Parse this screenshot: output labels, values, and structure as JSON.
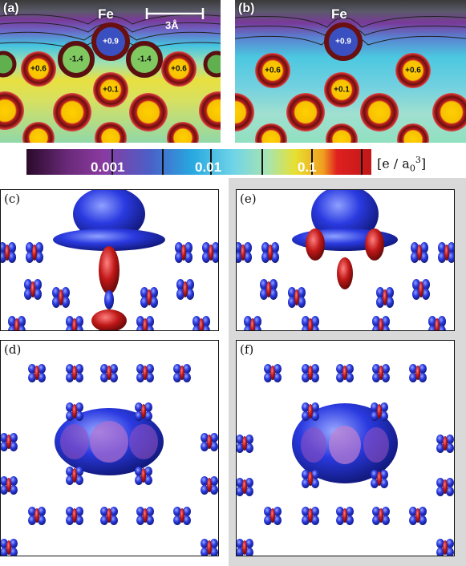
{
  "panels": {
    "a": {
      "label": "(a)",
      "element": "Fe",
      "scale_label": "3Å",
      "charges": [
        "+0.9",
        "+0.6",
        "-1.4",
        "-1.4",
        "+0.6",
        "+0.1"
      ]
    },
    "b": {
      "label": "(b)",
      "element": "Fe",
      "charges": [
        "+0.9",
        "+0.6",
        "+0.6",
        "+0.1"
      ]
    },
    "c": {
      "label": "(c)"
    },
    "d": {
      "label": "(d)"
    },
    "e": {
      "label": "(e)"
    },
    "f": {
      "label": "(f)"
    }
  },
  "colorbar": {
    "ticks": [
      "0.001",
      "0.01",
      "0.1"
    ],
    "unit": "[e / a",
    "unit_sub": "0",
    "unit_sup": "3",
    "unit_close": "]",
    "colors": [
      "#2a0a2a",
      "#7a2a8a",
      "#6a4ab0",
      "#4a6ad0",
      "#2a9ad8",
      "#6ad0e0",
      "#9ae0c0",
      "#e0e040",
      "#f0b020",
      "#e02020",
      "#c01818"
    ]
  }
}
